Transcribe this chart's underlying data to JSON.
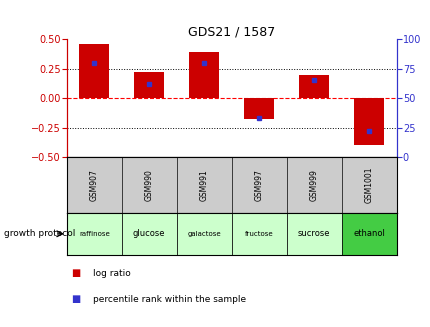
{
  "title": "GDS21 / 1587",
  "samples": [
    "GSM907",
    "GSM990",
    "GSM991",
    "GSM997",
    "GSM999",
    "GSM1001"
  ],
  "protocols": [
    "raffinose",
    "glucose",
    "galactose",
    "fructose",
    "sucrose",
    "ethanol"
  ],
  "log_ratios": [
    0.46,
    0.22,
    0.39,
    -0.18,
    0.2,
    -0.4
  ],
  "percentile_ranks": [
    80,
    62,
    80,
    33,
    65,
    22
  ],
  "bar_color": "#cc0000",
  "blue_color": "#3333cc",
  "ylim_left": [
    -0.5,
    0.5
  ],
  "ylim_right": [
    0,
    100
  ],
  "yticks_left": [
    -0.5,
    -0.25,
    0.0,
    0.25,
    0.5
  ],
  "yticks_right": [
    0,
    25,
    50,
    75,
    100
  ],
  "grid_values": [
    -0.25,
    0.0,
    0.25
  ],
  "protocol_colors": [
    "#ccffcc",
    "#ccffcc",
    "#ccffcc",
    "#ccffcc",
    "#ccffcc",
    "#44cc44"
  ],
  "sample_bg_color": "#cccccc",
  "title_color": "#000000",
  "left_axis_color": "#cc0000",
  "right_axis_color": "#3333cc",
  "legend_log_ratio": "log ratio",
  "legend_percentile": "percentile rank within the sample",
  "growth_protocol_label": "growth protocol",
  "bar_width": 0.55
}
